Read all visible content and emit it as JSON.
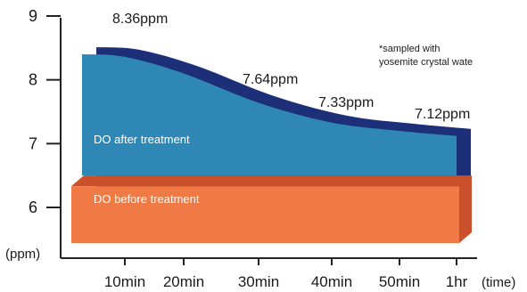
{
  "chart_data": {
    "type": "area",
    "title": "",
    "xlabel": "(time)",
    "ylabel": "(ppm)",
    "ylim": [
      5.5,
      9
    ],
    "y_ticks": [
      "9",
      "8",
      "7",
      "6"
    ],
    "y_tick_values": [
      9,
      8,
      7,
      6
    ],
    "categories": [
      "10min",
      "20min",
      "30min",
      "40min",
      "50min",
      "1hr"
    ],
    "series": [
      {
        "name": "DO after treatment",
        "x": [
          "",
          "10min",
          "20min",
          "30min",
          "40min",
          "50min",
          "1hr"
        ],
        "values": [
          8.4,
          8.36,
          8.1,
          7.64,
          7.33,
          7.2,
          7.12
        ],
        "color": "#2f87b5",
        "shadow_color": "#1c2f78"
      },
      {
        "name": "DO before treatment",
        "value": 6.5,
        "color": "#ef7a45",
        "shadow_color": "#c9502a"
      }
    ],
    "annotations": [
      {
        "text": "8.36ppm"
      },
      {
        "text": "7.64ppm"
      },
      {
        "text": "7.33ppm"
      },
      {
        "text": "7.12ppm"
      }
    ],
    "note_lines": [
      "*sampled with",
      "yosemite crystal wate"
    ],
    "grid": false,
    "legend": "none"
  }
}
